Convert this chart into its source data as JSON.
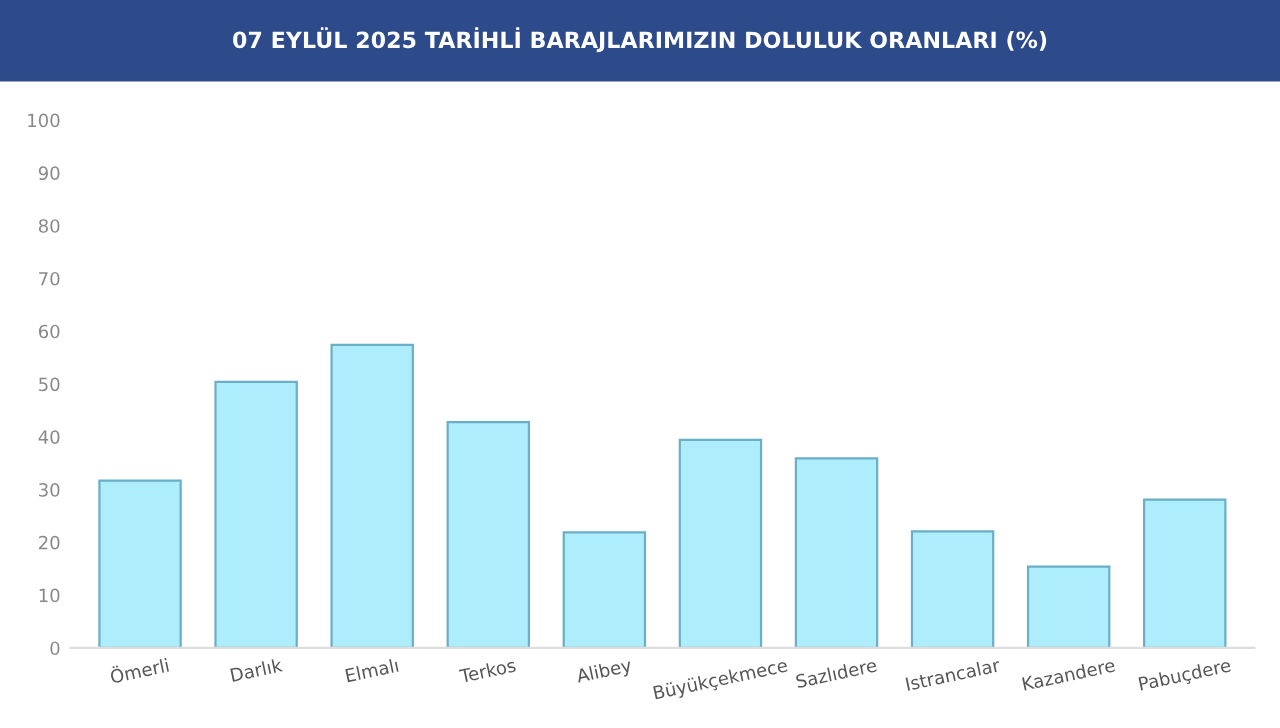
{
  "chart_data": {
    "type": "bar",
    "title": "07 EYLÜL 2025 TARİHLİ BARAJLARIMIZIN DOLULUK ORANLARI (%)",
    "categories": [
      "Ömerli",
      "Darlık",
      "Elmalı",
      "Terkos",
      "Alibey",
      "Büyükçekmece",
      "Sazlıdere",
      "Istrancalar",
      "Kazandere",
      "Pabuçdere"
    ],
    "values": [
      31.7,
      50.4,
      57.4,
      42.8,
      21.9,
      39.4,
      35.9,
      22.1,
      15.4,
      28.1
    ],
    "color": "#aeeefc",
    "ylim": [
      0,
      100
    ],
    "yticks": [
      0,
      10,
      20,
      30,
      40,
      50,
      60,
      70,
      80,
      90,
      100
    ],
    "grid": false
  }
}
